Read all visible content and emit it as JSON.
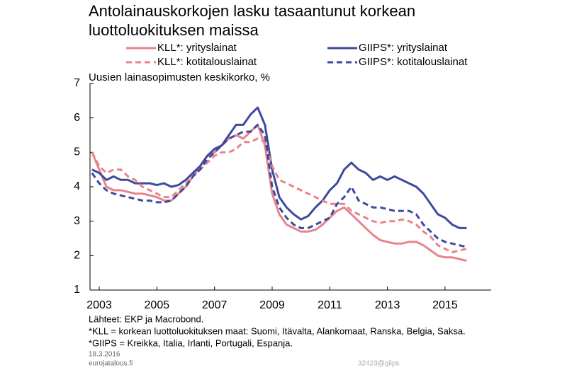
{
  "chart_data": {
    "type": "line",
    "title": [
      "Antolainauskorkojen lasku tasaantunut korkean",
      "luottoluokituksen maissa"
    ],
    "y_label": "Uusien lainasopimusten keskikorko, %",
    "x": [
      2002.75,
      2003,
      2003.25,
      2003.5,
      2003.75,
      2004,
      2004.25,
      2004.5,
      2004.75,
      2005,
      2005.25,
      2005.5,
      2005.75,
      2006,
      2006.25,
      2006.5,
      2006.75,
      2007,
      2007.25,
      2007.5,
      2007.75,
      2008,
      2008.25,
      2008.5,
      2008.75,
      2009,
      2009.25,
      2009.5,
      2009.75,
      2010,
      2010.25,
      2010.5,
      2010.75,
      2011,
      2011.25,
      2011.5,
      2011.75,
      2012,
      2012.25,
      2012.5,
      2012.75,
      2013,
      2013.25,
      2013.5,
      2013.75,
      2014,
      2014.25,
      2014.5,
      2014.75,
      2015,
      2015.25,
      2015.5,
      2015.75
    ],
    "series": [
      {
        "name": "KLL*: yrityslainat",
        "color": "#e8838a",
        "dash": false,
        "values": [
          5.0,
          4.5,
          4.0,
          3.9,
          3.9,
          3.85,
          3.8,
          3.8,
          3.75,
          3.7,
          3.6,
          3.6,
          3.8,
          4.0,
          4.3,
          4.6,
          4.9,
          5.0,
          5.2,
          5.4,
          5.5,
          5.4,
          5.6,
          5.8,
          5.2,
          3.8,
          3.2,
          2.9,
          2.8,
          2.7,
          2.7,
          2.75,
          2.9,
          3.1,
          3.3,
          3.4,
          3.2,
          3.0,
          2.8,
          2.6,
          2.45,
          2.4,
          2.35,
          2.35,
          2.4,
          2.4,
          2.3,
          2.15,
          2.0,
          1.95,
          1.95,
          1.9,
          1.85
        ]
      },
      {
        "name": "GIIPS*: yrityslainat",
        "color": "#3d4a9c",
        "dash": false,
        "values": [
          4.5,
          4.4,
          4.2,
          4.3,
          4.2,
          4.2,
          4.1,
          4.1,
          4.1,
          4.05,
          4.1,
          4.0,
          4.05,
          4.2,
          4.4,
          4.6,
          4.9,
          5.1,
          5.2,
          5.5,
          5.8,
          5.8,
          6.1,
          6.3,
          5.8,
          4.5,
          3.7,
          3.4,
          3.2,
          3.05,
          3.15,
          3.4,
          3.6,
          3.9,
          4.1,
          4.5,
          4.7,
          4.5,
          4.4,
          4.2,
          4.3,
          4.2,
          4.3,
          4.2,
          4.1,
          4.0,
          3.8,
          3.5,
          3.2,
          3.1,
          2.9,
          2.8,
          2.8
        ]
      },
      {
        "name": "KLL*: kotitalouslainat",
        "color": "#e8838a",
        "dash": true,
        "values": [
          5.0,
          4.6,
          4.4,
          4.5,
          4.5,
          4.3,
          4.2,
          4.0,
          3.9,
          3.8,
          3.7,
          3.7,
          3.9,
          4.1,
          4.3,
          4.5,
          4.7,
          4.9,
          5.0,
          5.0,
          5.1,
          5.3,
          5.3,
          5.4,
          5.3,
          4.6,
          4.2,
          4.1,
          4.0,
          3.9,
          3.8,
          3.7,
          3.6,
          3.5,
          3.5,
          3.5,
          3.3,
          3.2,
          3.1,
          3.0,
          2.95,
          3.0,
          3.0,
          3.05,
          3.0,
          2.9,
          2.7,
          2.55,
          2.3,
          2.2,
          2.1,
          2.15,
          2.2
        ]
      },
      {
        "name": "GIIPS*: kotitalouslainat",
        "color": "#3d4a9c",
        "dash": true,
        "values": [
          4.4,
          4.1,
          3.9,
          3.8,
          3.75,
          3.7,
          3.65,
          3.6,
          3.6,
          3.55,
          3.55,
          3.6,
          3.8,
          4.0,
          4.3,
          4.5,
          4.8,
          5.0,
          5.2,
          5.4,
          5.5,
          5.6,
          5.6,
          5.8,
          5.5,
          4.0,
          3.4,
          3.1,
          2.9,
          2.8,
          2.8,
          2.9,
          3.0,
          3.1,
          3.5,
          3.7,
          4.0,
          3.6,
          3.5,
          3.4,
          3.4,
          3.35,
          3.3,
          3.3,
          3.3,
          3.2,
          2.9,
          2.7,
          2.5,
          2.4,
          2.35,
          2.3,
          2.25
        ]
      }
    ],
    "xlim": [
      2002.68,
      2016.6
    ],
    "xticks": [
      2003,
      2005,
      2007,
      2009,
      2011,
      2013,
      2015
    ],
    "ylim": [
      1,
      7
    ],
    "yticks": [
      1,
      2,
      3,
      4,
      5,
      6,
      7
    ],
    "notes": [
      "Lähteet: EKP ja Macrobond.",
      "*KLL = korkean luottoluokituksen maat: Suomi, Itävalta, Alankomaat, Ranska, Belgia, Saksa.",
      "*GIIPS = Kreikka, Italia, Irlanti, Portugali, Espanja."
    ],
    "date": "18.3.2016",
    "site": "eurojatalous.fi",
    "code": "32423@giips"
  }
}
